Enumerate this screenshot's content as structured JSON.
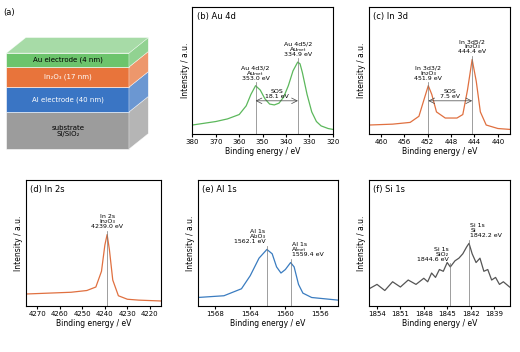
{
  "diagram": {
    "label": "(a)",
    "layers": [
      {
        "name": "substrate\nSi/SiO₂",
        "color": "#9c9c9c"
      },
      {
        "name": "Al electrode (40 nm)",
        "color": "#3a75c4"
      },
      {
        "name": "In₂O₃ (17 nm)",
        "color": "#e8743b"
      },
      {
        "name": "Au electrode (4 nm)",
        "color": "#6cc46c"
      }
    ]
  },
  "chart_data": [
    {
      "type": "line",
      "title": "(b) Au 4d",
      "x_label": "Binding energy / eV",
      "y_label": "Intensity / a.u.",
      "color": "#5cb85c",
      "tick_labels": "x",
      "xlim": [
        380,
        320
      ],
      "xticks": [
        380,
        370,
        360,
        350,
        340,
        330,
        320
      ],
      "ylim": [
        0,
        1.45
      ],
      "x": [
        380,
        375,
        370,
        365,
        360,
        357,
        355,
        353,
        351,
        349,
        347,
        345,
        343,
        341,
        339,
        337,
        335,
        334,
        333,
        331,
        329,
        327,
        325,
        322,
        320
      ],
      "values": [
        0.1,
        0.12,
        0.14,
        0.17,
        0.22,
        0.32,
        0.45,
        0.55,
        0.5,
        0.4,
        0.34,
        0.33,
        0.35,
        0.42,
        0.55,
        0.72,
        0.82,
        0.8,
        0.7,
        0.45,
        0.25,
        0.14,
        0.09,
        0.06,
        0.05
      ],
      "annotations": [
        {
          "lines": [
            "Au 4d3/2",
            "Auₘₑₜ"
          ],
          "x": 353.0,
          "label": "353.0 eV"
        },
        {
          "lines": [
            "Au 4d5/2",
            "Auₘₑₜ"
          ],
          "x": 334.9,
          "label": "334.9 eV"
        }
      ],
      "sos": {
        "text": "SOS",
        "value": 18.1,
        "label": "18.1 eV"
      }
    },
    {
      "type": "line",
      "title": "(c) In 3d",
      "x_label": "Binding energy / eV",
      "y_label": "Intensity / a.u.",
      "color": "#e07040",
      "tick_labels": "x",
      "xlim": [
        462,
        438
      ],
      "xticks": [
        460,
        456,
        452,
        448,
        444,
        440
      ],
      "ylim": [
        0,
        1.45
      ],
      "x": [
        462,
        458,
        455,
        453.5,
        452.5,
        451.9,
        451.3,
        450.5,
        449,
        447,
        446,
        445.2,
        444.4,
        443.7,
        443,
        442,
        440,
        438
      ],
      "values": [
        0.1,
        0.11,
        0.13,
        0.2,
        0.42,
        0.55,
        0.45,
        0.25,
        0.18,
        0.18,
        0.22,
        0.5,
        0.85,
        0.6,
        0.25,
        0.1,
        0.06,
        0.05
      ],
      "annotations": [
        {
          "lines": [
            "In 3d3/2",
            "In₂O₃"
          ],
          "x": 451.9,
          "label": "451.9 eV"
        },
        {
          "lines": [
            "In 3d5/2",
            "In₂O₃"
          ],
          "x": 444.4,
          "label": "444.4 eV"
        }
      ],
      "sos": {
        "text": "SOS",
        "value": 7.5,
        "label": "7.5 eV"
      }
    },
    {
      "type": "line",
      "title": "(d) In 2s",
      "x_label": "Binding energy / eV",
      "y_label": "Intensity / a.u.",
      "color": "#e07040",
      "tick_labels": "x",
      "xlim": [
        4275,
        4215
      ],
      "xticks": [
        4270,
        4260,
        4250,
        4240,
        4230,
        4220
      ],
      "ylim": [
        0,
        1.45
      ],
      "x": [
        4275,
        4265,
        4255,
        4248,
        4244,
        4241.5,
        4240,
        4239,
        4238,
        4236.5,
        4234,
        4230,
        4225,
        4215
      ],
      "values": [
        0.14,
        0.15,
        0.16,
        0.18,
        0.22,
        0.4,
        0.7,
        0.82,
        0.65,
        0.3,
        0.12,
        0.08,
        0.07,
        0.06
      ],
      "annotations": [
        {
          "lines": [
            "In 2s",
            "In₂O₃"
          ],
          "x": 4239.0,
          "label": "4239.0 eV"
        }
      ]
    },
    {
      "type": "line",
      "title": "(e) Al 1s",
      "x_label": "Binding energy / eV",
      "y_label": "Intensity / a.u.",
      "color": "#3a7cc0",
      "tick_labels": "x",
      "xlim": [
        1570,
        1554
      ],
      "xticks": [
        1568,
        1564,
        1560,
        1556
      ],
      "ylim": [
        0,
        1.45
      ],
      "x": [
        1570,
        1567,
        1565,
        1564,
        1563,
        1562.1,
        1561.5,
        1561,
        1560.5,
        1560,
        1559.4,
        1559,
        1558.5,
        1558,
        1557,
        1555,
        1554
      ],
      "values": [
        0.1,
        0.12,
        0.2,
        0.35,
        0.55,
        0.65,
        0.6,
        0.45,
        0.38,
        0.42,
        0.5,
        0.45,
        0.25,
        0.15,
        0.1,
        0.08,
        0.07
      ],
      "annotations": [
        {
          "lines": [
            "Al 1s",
            "Al₂O₃"
          ],
          "x": 1562.1,
          "label": "1562.1 eV"
        },
        {
          "lines": [
            "Al 1s",
            "Alₘₑₜ"
          ],
          "x": 1559.4,
          "label": "1559.4 eV"
        }
      ]
    },
    {
      "type": "line",
      "title": "(f) Si 1s",
      "x_label": "Binding energy / eV",
      "y_label": "Intensity / a.u.",
      "color": "#555555",
      "tick_labels": "x",
      "xlim": [
        1855,
        1837
      ],
      "xticks": [
        1854,
        1851,
        1848,
        1845,
        1842,
        1839
      ],
      "ylim": [
        0,
        1.45
      ],
      "x": [
        1855,
        1854,
        1853,
        1852,
        1851,
        1850,
        1849,
        1848,
        1847.5,
        1847,
        1846.5,
        1846,
        1845.5,
        1845,
        1844.6,
        1844,
        1843.5,
        1843,
        1842.5,
        1842.2,
        1841.8,
        1841.3,
        1840.8,
        1840.3,
        1839.8,
        1839.3,
        1838.8,
        1838.3,
        1837.8,
        1837
      ],
      "values": [
        0.2,
        0.25,
        0.18,
        0.28,
        0.22,
        0.3,
        0.25,
        0.32,
        0.28,
        0.38,
        0.33,
        0.42,
        0.4,
        0.5,
        0.45,
        0.52,
        0.55,
        0.6,
        0.68,
        0.72,
        0.6,
        0.5,
        0.55,
        0.4,
        0.42,
        0.3,
        0.33,
        0.25,
        0.28,
        0.22
      ],
      "annotations": [
        {
          "lines": [
            "Si 1s",
            "SiO₂"
          ],
          "x": 1844.6,
          "label": "1844.6 eV"
        },
        {
          "lines": [
            "Si 1s",
            "Si"
          ],
          "x": 1842.2,
          "label": "1842.2 eV"
        }
      ]
    }
  ]
}
